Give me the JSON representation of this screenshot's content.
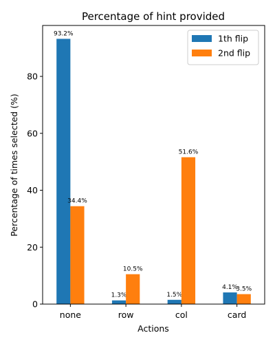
{
  "chart_data": {
    "type": "bar",
    "title": "Percentage of hint provided",
    "xlabel": "Actions",
    "ylabel": "Percentage of times selected (%)",
    "categories": [
      "none",
      "row",
      "col",
      "card"
    ],
    "series": [
      {
        "name": "1th flip",
        "color": "#1f77b4",
        "values": [
          93.2,
          1.3,
          1.5,
          4.1
        ],
        "labels": [
          "93.2%",
          "1.3%",
          "1.5%",
          "4.1%"
        ]
      },
      {
        "name": "2nd flip",
        "color": "#ff7f0e",
        "values": [
          34.4,
          10.5,
          51.6,
          3.5
        ],
        "labels": [
          "34.4%",
          "10.5%",
          "51.6%",
          "3.5%"
        ]
      }
    ],
    "ylim": [
      0,
      97.9
    ],
    "yticks": [
      0,
      20,
      40,
      60,
      80
    ],
    "grid": false,
    "legend_position": "top-right"
  }
}
